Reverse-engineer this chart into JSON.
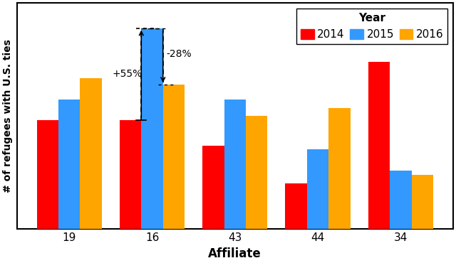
{
  "affiliates": [
    "19",
    "16",
    "43",
    "44",
    "34"
  ],
  "values": {
    "2014": [
      0.52,
      0.52,
      0.4,
      0.22,
      0.8
    ],
    "2015": [
      0.62,
      0.96,
      0.62,
      0.38,
      0.28
    ],
    "2016": [
      0.72,
      0.69,
      0.54,
      0.58,
      0.26
    ]
  },
  "colors": {
    "2014": "#FF0000",
    "2015": "#3399FF",
    "2016": "#FFA500"
  },
  "ylabel": "# of refugees with U.S. ties",
  "xlabel": "Affiliate",
  "legend_title": "Year",
  "annotation_plus": "+55%",
  "annotation_minus": "-28%",
  "background_color": "#FFFFFF",
  "grid_color": "#C8C8C8"
}
